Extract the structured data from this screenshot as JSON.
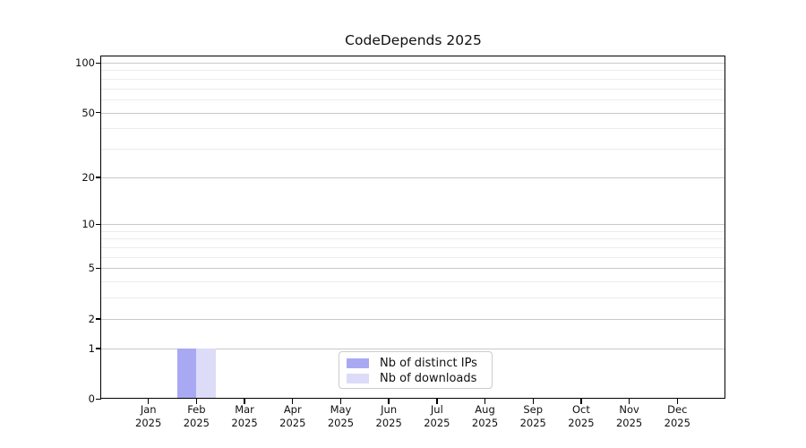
{
  "chart_data": {
    "type": "bar",
    "title": "CodeDepends 2025",
    "categories": [
      "Jan",
      "Feb",
      "Mar",
      "Apr",
      "May",
      "Jun",
      "Jul",
      "Aug",
      "Sep",
      "Oct",
      "Nov",
      "Dec"
    ],
    "x_tick_second_line": "2025",
    "series": [
      {
        "name": "Nb of distinct IPs",
        "color": "#a9a9f3",
        "values": [
          0,
          1,
          0,
          0,
          0,
          0,
          0,
          0,
          0,
          0,
          0,
          0
        ]
      },
      {
        "name": "Nb of downloads",
        "color": "#dcdcf8",
        "values": [
          0,
          1,
          0,
          0,
          0,
          0,
          0,
          0,
          0,
          0,
          0,
          0
        ]
      }
    ],
    "xlabel": "",
    "ylabel": "",
    "yscale": "log1p",
    "ylim": [
      0,
      100
    ],
    "yticks_major": [
      0,
      1,
      2,
      5,
      10,
      20,
      50,
      100
    ],
    "yticks_minor": [
      3,
      4,
      6,
      7,
      8,
      9,
      30,
      40,
      60,
      70,
      80,
      90
    ],
    "grid": "horizontal",
    "legend_position": "lower center"
  },
  "colors": {
    "background": "#ffffff",
    "axis": "#000000",
    "grid_major": "#c9c9c9",
    "grid_minor": "#ececec",
    "legend_border": "#cccccc"
  }
}
